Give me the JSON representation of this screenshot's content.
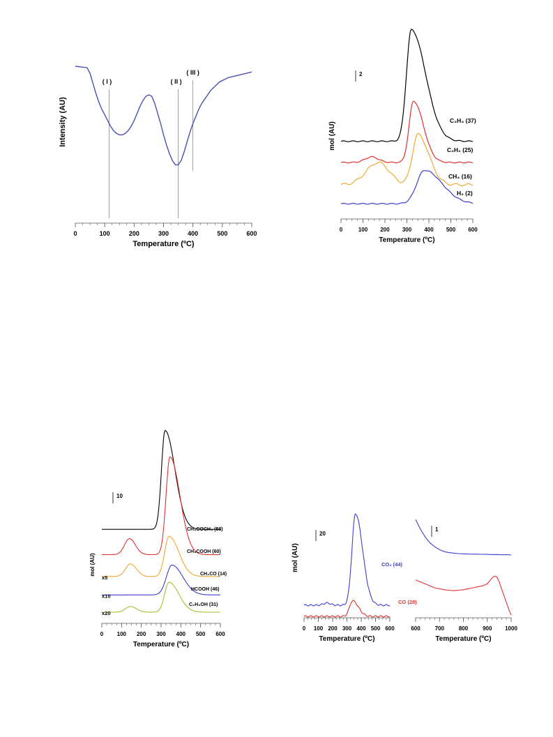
{
  "chart_data": [
    {
      "id": "a",
      "type": "line",
      "xlabel": "Temperature (ºC)",
      "ylabel": "Intensity (AU)",
      "xlim": [
        0,
        600
      ],
      "xticks": [
        "0",
        "100",
        "200",
        "300",
        "400",
        "500",
        "600"
      ],
      "annotations": [
        {
          "label": "( I )",
          "x": 115
        },
        {
          "label": "( II )",
          "x": 350
        },
        {
          "label": "( III )",
          "x": 400
        }
      ],
      "series": [
        {
          "name": "",
          "color": "#4a4fb5",
          "x": [
            0,
            40,
            50,
            60,
            70,
            80,
            90,
            100,
            110,
            120,
            130,
            140,
            150,
            160,
            170,
            180,
            190,
            200,
            210,
            220,
            230,
            240,
            250,
            260,
            270,
            280,
            290,
            300,
            310,
            320,
            330,
            340,
            350,
            360,
            370,
            380,
            390,
            400,
            410,
            420,
            430,
            440,
            450,
            460,
            470,
            480,
            490,
            500,
            520,
            540,
            560,
            580,
            600
          ],
          "y": [
            1.0,
            0.99,
            0.95,
            0.88,
            0.81,
            0.75,
            0.7,
            0.66,
            0.62,
            0.58,
            0.55,
            0.53,
            0.52,
            0.52,
            0.53,
            0.55,
            0.58,
            0.62,
            0.67,
            0.72,
            0.76,
            0.79,
            0.8,
            0.79,
            0.74,
            0.67,
            0.6,
            0.52,
            0.45,
            0.39,
            0.34,
            0.31,
            0.31,
            0.34,
            0.4,
            0.47,
            0.54,
            0.6,
            0.65,
            0.7,
            0.74,
            0.77,
            0.8,
            0.83,
            0.85,
            0.87,
            0.89,
            0.9,
            0.92,
            0.93,
            0.94,
            0.95,
            0.96
          ]
        }
      ]
    },
    {
      "id": "b",
      "type": "line",
      "xlabel": "Temperature (ºC)",
      "ylabel": "mol (AU)",
      "xlim": [
        0,
        600
      ],
      "xticks": [
        "0",
        "100",
        "200",
        "300",
        "400",
        "500",
        "600"
      ],
      "scale_bar_label": "2",
      "series": [
        {
          "name": "C₃H₄ (37)",
          "color": "#000000",
          "offset": 0.59,
          "peaks": [
            [
              320,
              1.0,
              22,
              65
            ]
          ]
        },
        {
          "name": "C₂H₂ (25)",
          "color": "#e03030",
          "offset": 0.4,
          "peaks": [
            [
              330,
              0.55,
              20,
              45
            ],
            [
              140,
              0.05,
              30,
              30
            ]
          ]
        },
        {
          "name": "CH₄ (16)",
          "color": "#f0a830",
          "offset": 0.2,
          "peaks": [
            [
              350,
              0.45,
              25,
              50
            ],
            [
              170,
              0.2,
              55,
              50
            ]
          ]
        },
        {
          "name": "H₂ (2)",
          "color": "#3c3cd0",
          "offset": 0.03,
          "peaks": [
            [
              380,
              0.3,
              35,
              80
            ]
          ]
        }
      ]
    },
    {
      "id": "c",
      "type": "line",
      "xlabel": "Temperature (ºC)",
      "ylabel": "mol (AU)",
      "xlim": [
        0,
        600
      ],
      "xticks": [
        "0",
        "100",
        "200",
        "300",
        "400",
        "500",
        "600"
      ],
      "scale_bar_label": "10",
      "series": [
        {
          "name": "CH₃COCH₃ (58)",
          "color": "#000000",
          "multiplier": "",
          "offset": 0.72,
          "peaks": [
            [
              320,
              0.86,
              18,
              50
            ]
          ]
        },
        {
          "name": "CH₃COOH (60)",
          "color": "#e03030",
          "multiplier": "",
          "offset": 0.5,
          "peaks": [
            [
              345,
              0.85,
              20,
              50
            ],
            [
              140,
              0.14,
              25,
              30
            ]
          ]
        },
        {
          "name": "CH₂CO (14)",
          "color": "#f0a830",
          "multiplier": "x5",
          "offset": 0.31,
          "peaks": [
            [
              340,
              0.35,
              22,
              50
            ],
            [
              145,
              0.11,
              25,
              30
            ]
          ]
        },
        {
          "name": "HCOOH (46)",
          "color": "#3c3cd0",
          "multiplier": "x10",
          "offset": 0.15,
          "peaks": [
            [
              355,
              0.26,
              28,
              55
            ]
          ]
        },
        {
          "name": "C₂H₅OH (31)",
          "color": "#a0c030",
          "multiplier": "x20",
          "offset": 0.0,
          "peaks": [
            [
              340,
              0.26,
              22,
              50
            ],
            [
              145,
              0.05,
              25,
              30
            ]
          ]
        }
      ]
    },
    {
      "id": "d",
      "type": "line",
      "xlabel": "Temperature (ºC)",
      "ylabel": "mol (AU)",
      "xlim": [
        0,
        600
      ],
      "xticks": [
        "0",
        "100",
        "200",
        "300",
        "400",
        "500",
        "600"
      ],
      "scale_bar_label": "20",
      "series": [
        {
          "name": "CO₂ (44)",
          "color": "#3c3cd0",
          "offset": 0.1,
          "peaks": [
            [
              360,
              0.82,
              25,
              50
            ],
            [
              160,
              0.02,
              25,
              25
            ]
          ]
        },
        {
          "name": "CO (28)",
          "color": "#e03030",
          "offset": 0.0,
          "peaks": [
            [
              340,
              0.14,
              22,
              40
            ]
          ]
        }
      ]
    },
    {
      "id": "e",
      "type": "line",
      "xlabel": "Temperature (ºC)",
      "xlim": [
        600,
        1000
      ],
      "xticks": [
        "600",
        "700",
        "800",
        "900",
        "1000"
      ],
      "scale_bar_label": "1",
      "series": [
        {
          "name": "",
          "color": "#3c3cd0",
          "x": [
            600,
            620,
            640,
            660,
            680,
            700,
            720,
            740,
            760,
            780,
            800,
            820,
            840,
            860,
            880,
            900,
            920,
            940,
            960,
            980,
            1000
          ],
          "y": [
            1.0,
            0.9,
            0.82,
            0.76,
            0.72,
            0.69,
            0.67,
            0.66,
            0.655,
            0.65,
            0.648,
            0.646,
            0.645,
            0.644,
            0.643,
            0.642,
            0.64,
            0.641,
            0.638,
            0.64,
            0.636
          ]
        },
        {
          "name": "",
          "color": "#e03030",
          "x": [
            600,
            620,
            640,
            660,
            680,
            700,
            720,
            740,
            760,
            780,
            800,
            820,
            840,
            860,
            880,
            900,
            910,
            920,
            930,
            940,
            950,
            960,
            970,
            980,
            990,
            1000
          ],
          "y": [
            0.38,
            0.36,
            0.34,
            0.32,
            0.3,
            0.29,
            0.28,
            0.275,
            0.27,
            0.275,
            0.28,
            0.29,
            0.3,
            0.31,
            0.32,
            0.34,
            0.37,
            0.4,
            0.42,
            0.41,
            0.36,
            0.29,
            0.22,
            0.15,
            0.08,
            0.02
          ]
        }
      ]
    }
  ]
}
